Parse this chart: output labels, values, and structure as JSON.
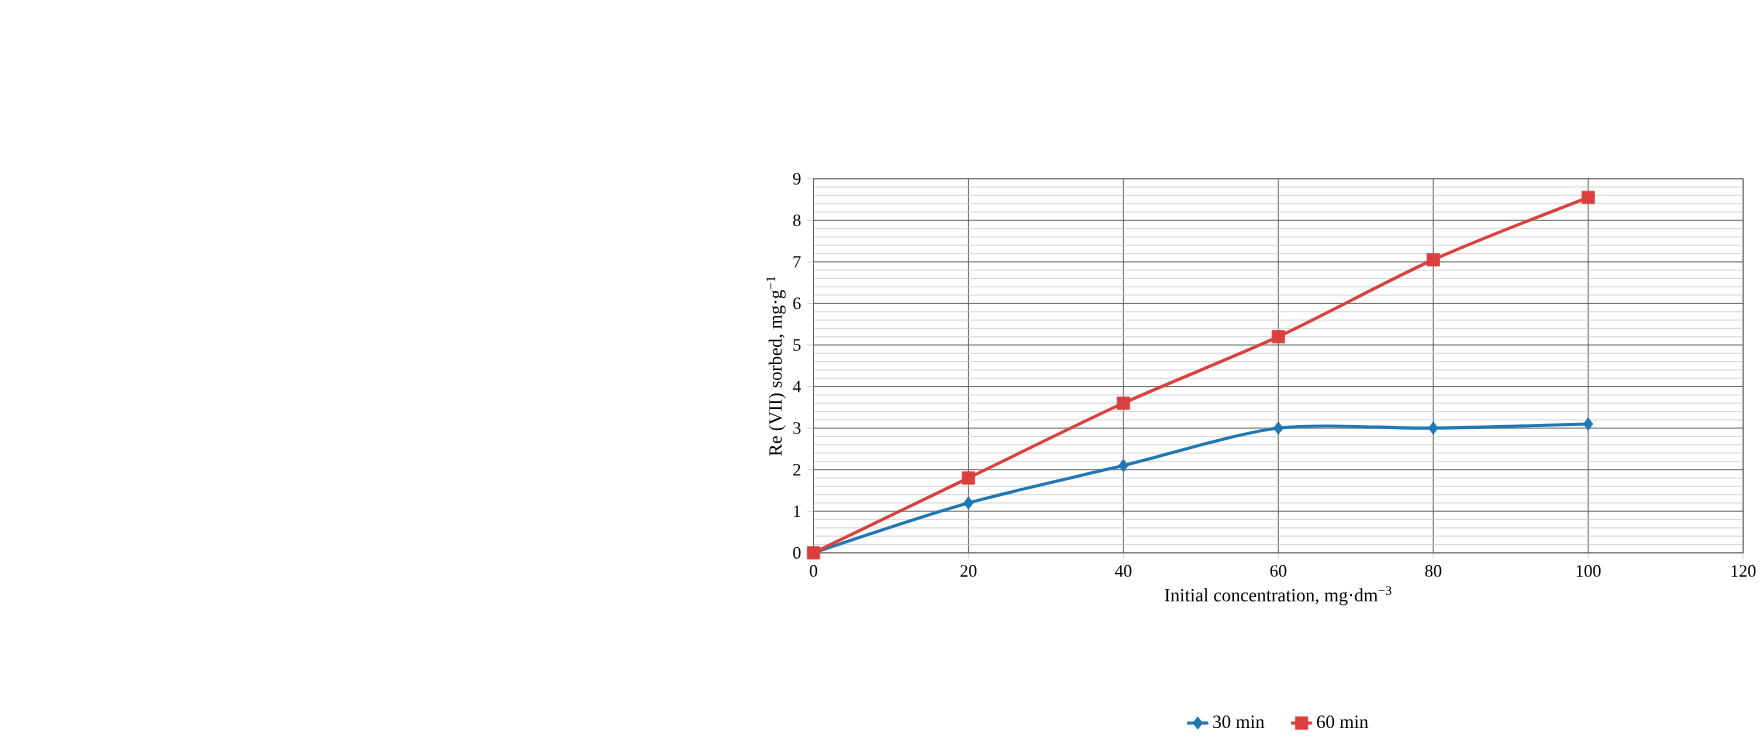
{
  "chart_data": {
    "type": "line",
    "xlabel": "Initial concentration, mg·dm$^{−3}$",
    "ylabel": "Re (VII) sorbed, mg·g$^{−1}$",
    "x": [
      0,
      20,
      40,
      60,
      80,
      100
    ],
    "series": [
      {
        "name": "30 min",
        "color": "#1f77b4",
        "marker": "diamond",
        "values": [
          0,
          1.2,
          2.1,
          3.0,
          3.0,
          3.1
        ]
      },
      {
        "name": "60 min",
        "color": "#d9413e",
        "marker": "square",
        "values": [
          0,
          1.8,
          3.6,
          5.2,
          7.05,
          8.55
        ]
      }
    ],
    "xlim": [
      0,
      120
    ],
    "ylim": [
      0,
      9
    ],
    "xticks": [
      0,
      20,
      40,
      60,
      80,
      100,
      120
    ],
    "yticks": [
      0,
      1,
      2,
      3,
      4,
      5,
      6,
      7,
      8,
      9
    ],
    "grid": true,
    "legend": "bottom"
  }
}
